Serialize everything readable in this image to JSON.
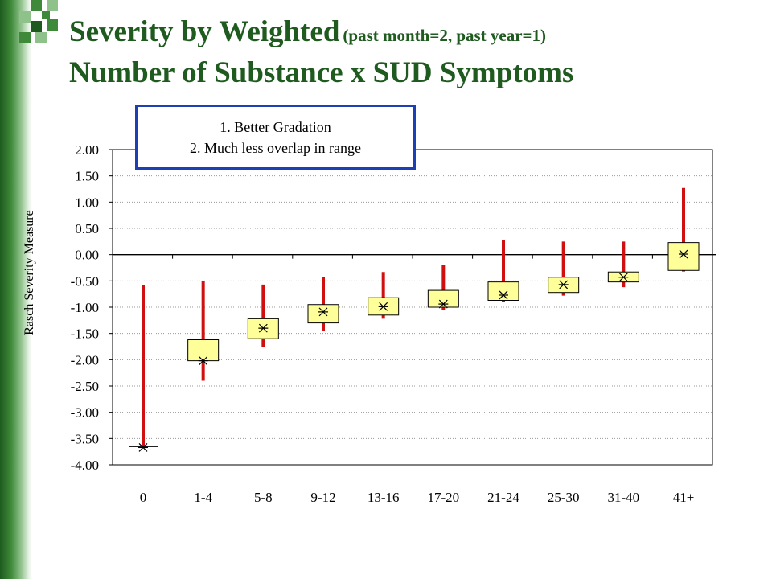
{
  "title": {
    "line1_main": "Severity by Weighted",
    "line1_small": "(past month=2, past year=1)",
    "line2": "Number of Substance x SUD Symptoms"
  },
  "callout": {
    "line1": "1. Better Gradation",
    "line2": "2. Much less overlap in range"
  },
  "colors": {
    "title": "#1f5a1f",
    "whisker": "#d01010",
    "box_fill": "#ffff99",
    "callout_border": "#1d3fb5"
  },
  "chart_data": {
    "type": "boxplot",
    "ylabel": "Rasch Severity Measure",
    "xlabel": "",
    "ylim": [
      -4.0,
      2.0
    ],
    "yticks": [
      "2.00",
      "1.50",
      "1.00",
      "0.50",
      "0.00",
      "-0.50",
      "-1.00",
      "-1.50",
      "-2.00",
      "-2.50",
      "-3.00",
      "-3.50",
      "-4.00"
    ],
    "categories": [
      "0",
      "1-4",
      "5-8",
      "9-12",
      "13-16",
      "17-20",
      "21-24",
      "25-30",
      "31-40",
      "41+"
    ],
    "whisker_low": [
      -3.65,
      -2.4,
      -1.75,
      -1.45,
      -1.22,
      -1.05,
      -0.9,
      -0.78,
      -0.62,
      -0.32
    ],
    "whisker_high": [
      -0.58,
      -0.5,
      -0.57,
      -0.43,
      -0.33,
      -0.2,
      0.27,
      0.25,
      0.25,
      1.27
    ],
    "box_low": [
      -3.65,
      -2.02,
      -1.6,
      -1.3,
      -1.15,
      -1.0,
      -0.87,
      -0.72,
      -0.52,
      -0.3
    ],
    "box_high": [
      -3.65,
      -1.62,
      -1.22,
      -0.95,
      -0.82,
      -0.68,
      -0.52,
      -0.43,
      -0.33,
      0.23
    ],
    "median": [
      -3.67,
      -2.02,
      -1.4,
      -1.09,
      -0.99,
      -0.94,
      -0.77,
      -0.57,
      -0.43,
      0.01
    ],
    "grid": true,
    "legend": "none"
  }
}
